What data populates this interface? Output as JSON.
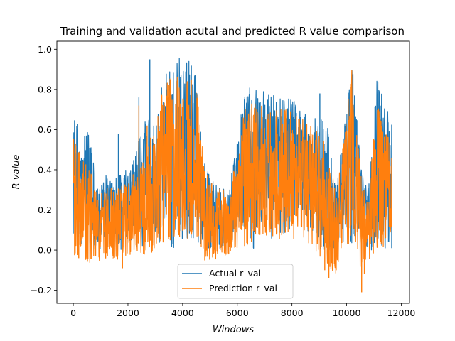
{
  "chart_data": {
    "type": "line",
    "title": "Training and validation acutal and predicted R value comparison",
    "xlabel": "Windows",
    "ylabel": "R value",
    "xlim": [
      -600,
      12300
    ],
    "ylim": [
      -0.265,
      1.04
    ],
    "xticks": [
      0,
      2000,
      4000,
      6000,
      8000,
      10000,
      12000
    ],
    "xtick_labels": [
      "0",
      "2000",
      "4000",
      "6000",
      "8000",
      "10000",
      "12000"
    ],
    "yticks": [
      -0.2,
      0.0,
      0.2,
      0.4,
      0.6,
      0.8,
      1.0
    ],
    "ytick_labels": [
      "−0.2",
      "0.0",
      "0.2",
      "0.4",
      "0.6",
      "0.8",
      "1.0"
    ],
    "grid": false,
    "legend_position": "lower-center",
    "series": [
      {
        "name": "Actual r_val",
        "color": "#1f77b4",
        "envelope": {
          "x": [
            0,
            300,
            600,
            900,
            1200,
            1500,
            1800,
            2100,
            2400,
            2700,
            3000,
            3300,
            3600,
            3900,
            4200,
            4500,
            4800,
            5100,
            5400,
            5700,
            6000,
            6300,
            6600,
            6900,
            7200,
            7500,
            7800,
            8100,
            8400,
            8700,
            9000,
            9300,
            9600,
            9900,
            10200,
            10500,
            10800,
            11100,
            11400,
            11650
          ],
          "min": [
            0.08,
            0.0,
            0.02,
            0.0,
            0.0,
            0.02,
            0.0,
            0.05,
            0.0,
            0.05,
            0.0,
            0.05,
            0.0,
            0.05,
            0.05,
            0.05,
            0.0,
            0.0,
            0.0,
            0.0,
            0.12,
            0.1,
            0.0,
            0.15,
            0.05,
            0.1,
            0.05,
            0.15,
            0.12,
            0.08,
            0.0,
            0.0,
            0.0,
            0.0,
            0.0,
            0.0,
            0.0,
            0.0,
            0.0,
            0.05
          ],
          "max": [
            0.66,
            0.6,
            0.58,
            0.3,
            0.4,
            0.35,
            0.4,
            0.4,
            0.55,
            0.68,
            0.63,
            0.86,
            0.92,
            0.97,
            0.95,
            0.88,
            0.44,
            0.35,
            0.3,
            0.32,
            0.55,
            0.84,
            0.83,
            0.8,
            0.78,
            0.76,
            0.76,
            0.74,
            0.7,
            0.68,
            0.66,
            0.62,
            0.3,
            0.6,
            0.94,
            0.44,
            0.3,
            0.86,
            0.72,
            0.65
          ]
        },
        "spikes": [
          [
            160,
            0.6
          ],
          [
            1650,
            0.58
          ],
          [
            2400,
            0.76
          ],
          [
            2800,
            0.95
          ],
          [
            5350,
            0.31
          ],
          [
            9020,
            0.78
          ],
          [
            9800,
            0.3
          ],
          [
            10600,
            0.2
          ],
          [
            11000,
            0.48
          ],
          [
            11650,
            0.01
          ]
        ]
      },
      {
        "name": "Prediction r_val",
        "color": "#ff7f0e",
        "envelope": {
          "x": [
            0,
            300,
            600,
            900,
            1200,
            1500,
            1800,
            2100,
            2400,
            2700,
            3000,
            3300,
            3600,
            3900,
            4200,
            4500,
            4800,
            5100,
            5400,
            5700,
            6000,
            6300,
            6600,
            6900,
            7200,
            7500,
            7800,
            8100,
            8400,
            8700,
            9000,
            9300,
            9600,
            9900,
            10200,
            10500,
            10800,
            11100,
            11400,
            11650
          ],
          "min": [
            -0.02,
            -0.05,
            -0.07,
            -0.08,
            -0.05,
            -0.05,
            -0.04,
            -0.02,
            -0.02,
            -0.03,
            0.0,
            0.03,
            0.05,
            0.05,
            0.04,
            0.05,
            -0.05,
            -0.05,
            -0.04,
            -0.02,
            0.0,
            0.02,
            0.05,
            0.08,
            0.06,
            0.05,
            0.08,
            0.05,
            0.05,
            0.03,
            -0.03,
            -0.08,
            -0.12,
            0.05,
            0.0,
            -0.12,
            -0.05,
            0.0,
            0.02,
            0.05
          ],
          "max": [
            0.56,
            0.48,
            0.42,
            0.25,
            0.32,
            0.3,
            0.32,
            0.35,
            0.47,
            0.55,
            0.6,
            0.85,
            0.88,
            0.86,
            0.86,
            0.86,
            0.4,
            0.33,
            0.3,
            0.3,
            0.5,
            0.72,
            0.74,
            0.72,
            0.71,
            0.7,
            0.7,
            0.68,
            0.65,
            0.62,
            0.58,
            0.52,
            0.28,
            0.55,
            0.92,
            0.4,
            0.27,
            0.72,
            0.65,
            0.5
          ]
        },
        "spikes": [
          [
            200,
            -0.04
          ],
          [
            1800,
            -0.09
          ],
          [
            2400,
            0.72
          ],
          [
            2700,
            0.62
          ],
          [
            9200,
            -0.1
          ],
          [
            9350,
            -0.14
          ],
          [
            10550,
            -0.21
          ],
          [
            10650,
            -0.12
          ]
        ]
      }
    ]
  }
}
